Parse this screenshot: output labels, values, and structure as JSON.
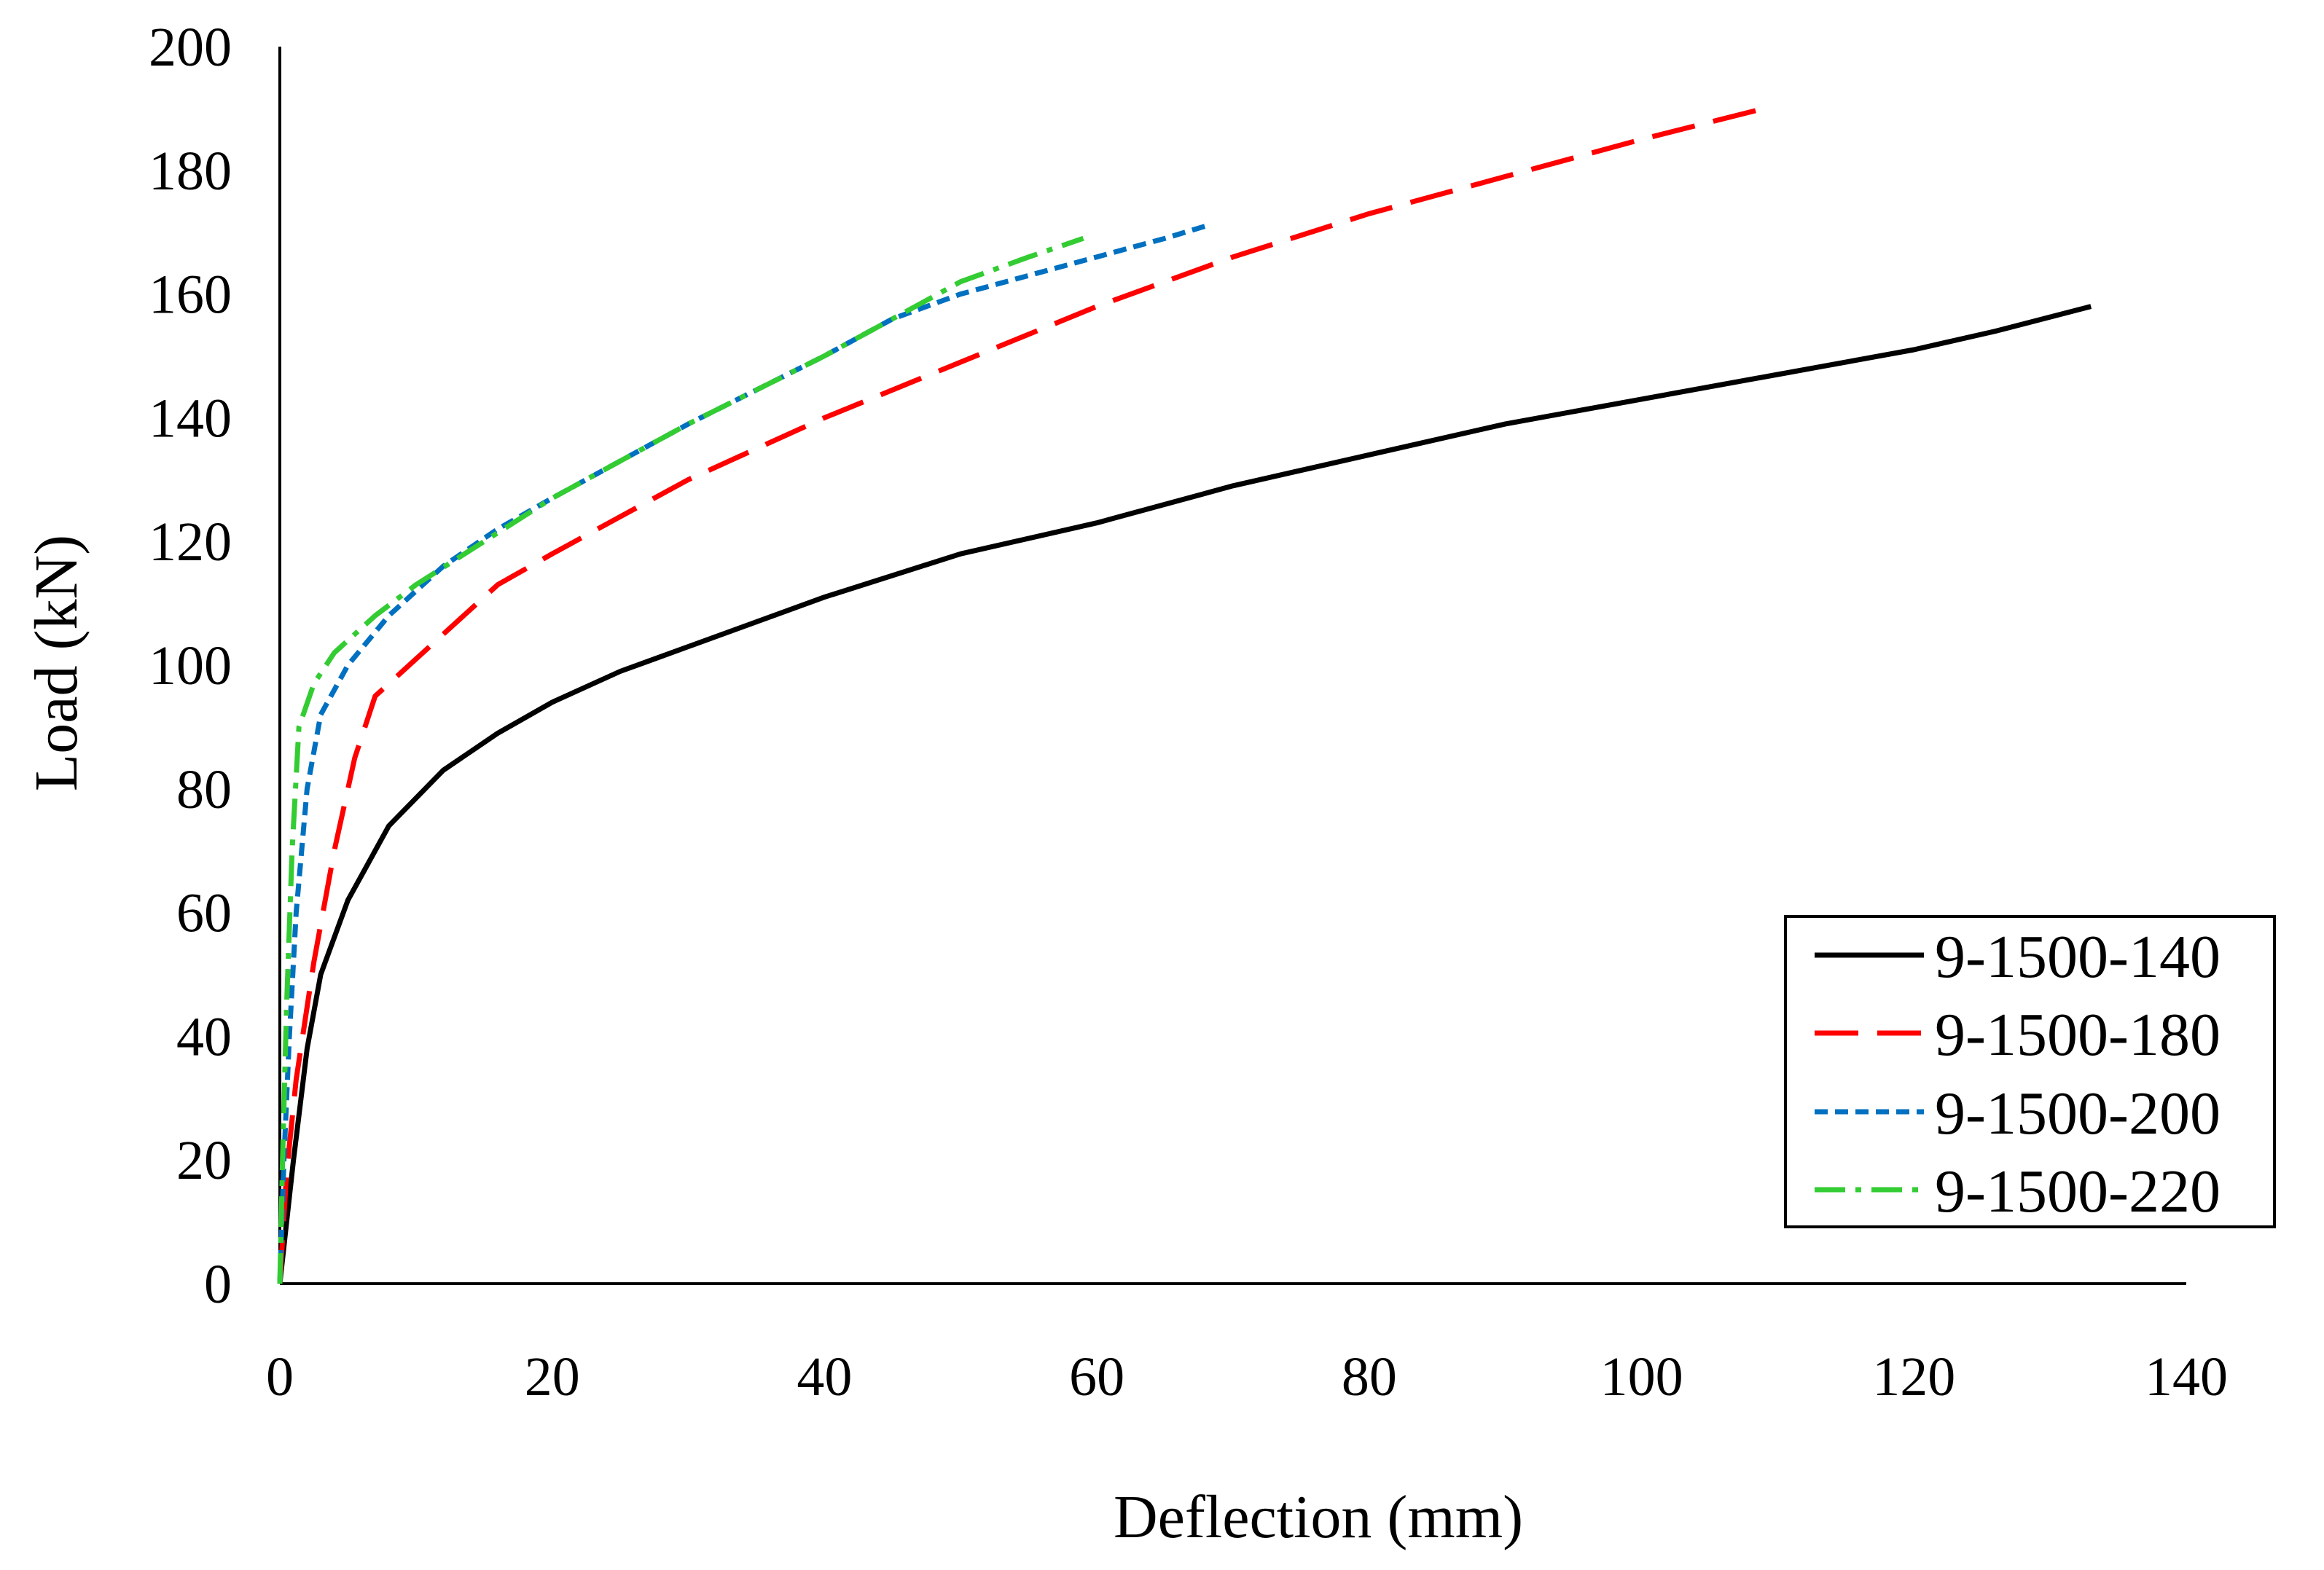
{
  "chart_data": {
    "type": "line",
    "title": "",
    "xlabel": "Deflection (mm)",
    "ylabel": "Load (kN)",
    "xlim": [
      0,
      140
    ],
    "ylim": [
      0,
      200
    ],
    "xticks": [
      0,
      20,
      40,
      60,
      80,
      100,
      120,
      140
    ],
    "yticks": [
      0,
      20,
      40,
      60,
      80,
      100,
      120,
      140,
      160,
      180,
      200
    ],
    "grid": false,
    "legend_position": "bottom-right",
    "series": [
      {
        "name": "9-1500-140",
        "color": "#000000",
        "dash": "solid",
        "points": [
          [
            0,
            0
          ],
          [
            0.5,
            10
          ],
          [
            1,
            20
          ],
          [
            2,
            38
          ],
          [
            3,
            50
          ],
          [
            5,
            62
          ],
          [
            8,
            74
          ],
          [
            12,
            83
          ],
          [
            16,
            89
          ],
          [
            20,
            94
          ],
          [
            25,
            99
          ],
          [
            30,
            103
          ],
          [
            40,
            111
          ],
          [
            50,
            118
          ],
          [
            60,
            123
          ],
          [
            70,
            129
          ],
          [
            80,
            134
          ],
          [
            90,
            139
          ],
          [
            100,
            143
          ],
          [
            110,
            147
          ],
          [
            120,
            151
          ],
          [
            126,
            154
          ],
          [
            133,
            158
          ]
        ]
      },
      {
        "name": "9-1500-180",
        "color": "#ff0000",
        "dash": "long-dash",
        "points": [
          [
            0,
            0
          ],
          [
            0.5,
            18
          ],
          [
            1.2,
            33
          ],
          [
            2.5,
            52
          ],
          [
            4,
            70
          ],
          [
            5.5,
            85
          ],
          [
            7,
            95
          ],
          [
            9,
            99
          ],
          [
            12,
            105
          ],
          [
            16,
            113
          ],
          [
            20,
            118
          ],
          [
            25,
            124
          ],
          [
            30,
            130
          ],
          [
            40,
            140
          ],
          [
            50,
            149
          ],
          [
            60,
            158
          ],
          [
            70,
            166
          ],
          [
            80,
            173
          ],
          [
            90,
            179
          ],
          [
            100,
            185
          ],
          [
            109,
            190
          ]
        ]
      },
      {
        "name": "9-1500-200",
        "color": "#0070c0",
        "dash": "short-dash",
        "points": [
          [
            0,
            0
          ],
          [
            0.3,
            20
          ],
          [
            0.7,
            40
          ],
          [
            1.2,
            60
          ],
          [
            2,
            80
          ],
          [
            3,
            92
          ],
          [
            5,
            100
          ],
          [
            8,
            108
          ],
          [
            12,
            116
          ],
          [
            16,
            122
          ],
          [
            20,
            127
          ],
          [
            25,
            133
          ],
          [
            30,
            139
          ],
          [
            40,
            150
          ],
          [
            45,
            156
          ],
          [
            50,
            160
          ],
          [
            55,
            163
          ],
          [
            60,
            166
          ],
          [
            65,
            169
          ],
          [
            68,
            171
          ]
        ]
      },
      {
        "name": "9-1500-220",
        "color": "#33cc33",
        "dash": "dash-dot",
        "points": [
          [
            0,
            0
          ],
          [
            0.2,
            20
          ],
          [
            0.5,
            45
          ],
          [
            0.9,
            70
          ],
          [
            1.4,
            90
          ],
          [
            2.5,
            97
          ],
          [
            4,
            102
          ],
          [
            7,
            108
          ],
          [
            10,
            113
          ],
          [
            15,
            120
          ],
          [
            20,
            127
          ],
          [
            25,
            133
          ],
          [
            30,
            139
          ],
          [
            40,
            150
          ],
          [
            45,
            156
          ],
          [
            50,
            162
          ],
          [
            55,
            166
          ],
          [
            59,
            169
          ]
        ]
      }
    ]
  }
}
